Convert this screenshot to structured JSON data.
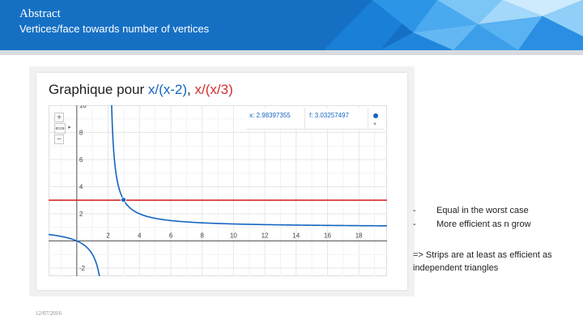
{
  "header": {
    "title": "Abstract",
    "subtitle": "Vertices/face towards number of vertices"
  },
  "graph": {
    "title_prefix": "Graphique pour",
    "function_1": "x/(x-2)",
    "separator": ",",
    "function_2": "x/(x/3)",
    "readout": {
      "x": "x: 2.98397355",
      "f": "f: 3.03257497"
    },
    "controls": {
      "zoom_in": "+",
      "pan": "⟺",
      "zoom_out": "−",
      "expand": "▸"
    },
    "colors": {
      "function_1": "#1565c0",
      "function_2": "#d32f2f"
    }
  },
  "chart_data": {
    "type": "line",
    "title": "",
    "xlim": [
      -1.8,
      19.8
    ],
    "ylim": [
      -2.6,
      10
    ],
    "x_ticks": [
      2,
      4,
      6,
      8,
      10,
      12,
      14,
      16,
      18
    ],
    "y_ticks": [
      -2,
      2,
      4,
      6,
      8,
      10
    ],
    "grid": true,
    "series": [
      {
        "name": "x/(x-2)",
        "function": "x/(x-2)",
        "color": "#1565c0"
      },
      {
        "name": "x/(x/3)",
        "function": "x/(x/3)",
        "color": "#d32f2f"
      }
    ],
    "highlight_point": {
      "x": 2.98397355,
      "y": 3.03257497
    }
  },
  "bullets": [
    {
      "dash": "-",
      "text": "Equal in the worst case"
    },
    {
      "dash": "-",
      "text": "More efficient as n grow"
    }
  ],
  "conclusion": "=> Strips are at least as efficient as independent triangles",
  "footer": {
    "date": "12/07/2016"
  }
}
